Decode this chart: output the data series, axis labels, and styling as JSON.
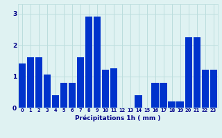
{
  "hours": [
    0,
    1,
    2,
    3,
    4,
    5,
    6,
    7,
    8,
    9,
    10,
    11,
    12,
    13,
    14,
    15,
    16,
    17,
    18,
    19,
    20,
    21,
    22,
    23
  ],
  "values": [
    1.4,
    1.6,
    1.6,
    1.05,
    0.4,
    0.8,
    0.8,
    1.6,
    2.9,
    2.9,
    1.2,
    1.25,
    0.0,
    0.0,
    0.4,
    0.0,
    0.8,
    0.8,
    0.2,
    0.2,
    2.25,
    2.25,
    1.2,
    1.2
  ],
  "bar_color": "#0033cc",
  "background_color": "#dff2f2",
  "grid_color": "#bbdddd",
  "xlabel": "Précipitations 1h ( mm )",
  "tick_color": "#000088",
  "yticks": [
    0,
    1,
    2,
    3
  ],
  "ylim": [
    0,
    3.3
  ],
  "xlim": [
    -0.5,
    23.5
  ]
}
